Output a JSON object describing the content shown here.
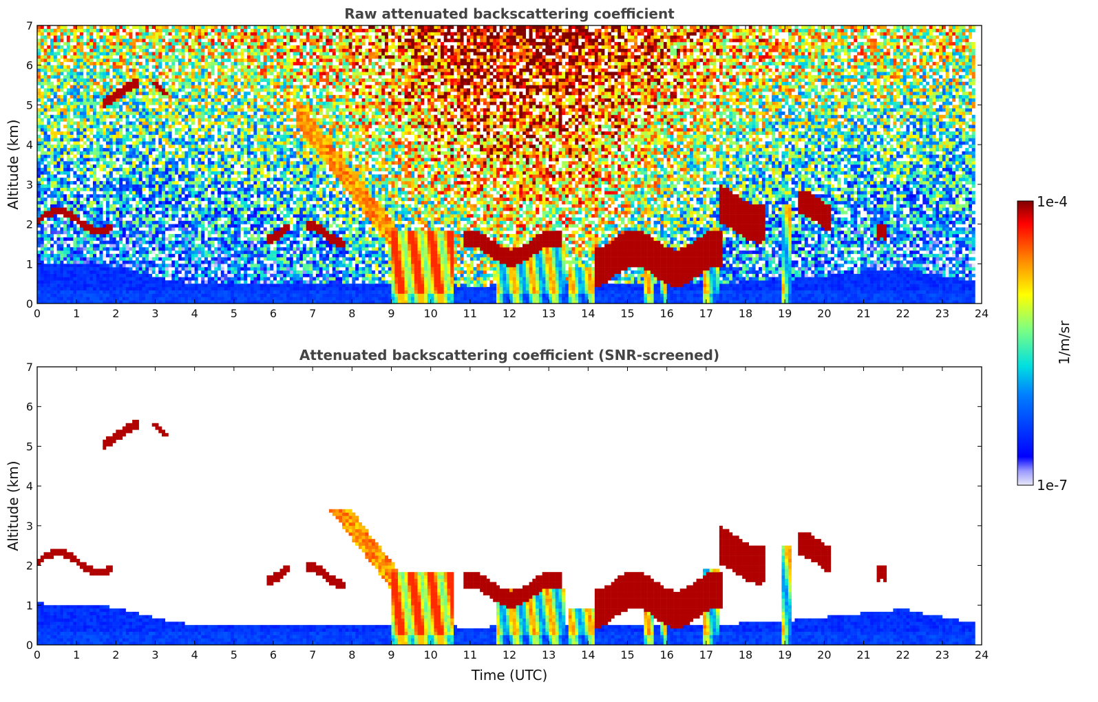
{
  "chart_data": [
    {
      "type": "heatmap",
      "title": "Raw attenuated backscattering coefficient",
      "ylabel": "Altitude (km)",
      "xlabel": "",
      "xlim": [
        0,
        24
      ],
      "ylim": [
        0,
        7
      ],
      "xticks": [
        "0",
        "1",
        "2",
        "3",
        "4",
        "5",
        "6",
        "7",
        "8",
        "9",
        "10",
        "11",
        "12",
        "13",
        "14",
        "15",
        "16",
        "17",
        "18",
        "19",
        "20",
        "21",
        "22",
        "23",
        "24"
      ],
      "yticks": [
        "0",
        "1",
        "2",
        "3",
        "4",
        "5",
        "6",
        "7"
      ],
      "screened": false
    },
    {
      "type": "heatmap",
      "title": "Attenuated backscattering coefficient (SNR-screened)",
      "ylabel": "Altitude (km)",
      "xlabel": "Time (UTC)",
      "xlim": [
        0,
        24
      ],
      "ylim": [
        0,
        7
      ],
      "xticks": [
        "0",
        "1",
        "2",
        "3",
        "4",
        "5",
        "6",
        "7",
        "8",
        "9",
        "10",
        "11",
        "12",
        "13",
        "14",
        "15",
        "16",
        "17",
        "18",
        "19",
        "20",
        "21",
        "22",
        "23",
        "24"
      ],
      "yticks": [
        "0",
        "1",
        "2",
        "3",
        "4",
        "5",
        "6",
        "7"
      ],
      "screened": true
    }
  ],
  "colorbar": {
    "label": "1/m/sr",
    "max_label": "1e-4",
    "min_label": "1e-7",
    "scale": "log",
    "range": [
      1e-07,
      0.0001
    ],
    "colormap": "jet"
  },
  "features": {
    "boundary_layer_top_km": [
      [
        0,
        1.05
      ],
      [
        2,
        0.95
      ],
      [
        3.5,
        0.55
      ],
      [
        5,
        0.5
      ],
      [
        8,
        0.5
      ],
      [
        9,
        0.5
      ],
      [
        11,
        0.45
      ],
      [
        14,
        0.5
      ],
      [
        17,
        0.5
      ],
      [
        19,
        0.6
      ],
      [
        21,
        0.8
      ],
      [
        22,
        0.9
      ],
      [
        23,
        0.7
      ],
      [
        23.8,
        0.55
      ]
    ],
    "cloud_layers": [
      {
        "t0": 0,
        "t1": 1.95,
        "z0": 2.0,
        "z1": 2.15
      },
      {
        "t0": 1.7,
        "t1": 2.6,
        "z0": 5.2,
        "z1": 5.4
      },
      {
        "t0": 2.9,
        "t1": 3.3,
        "z0": 5.35,
        "z1": 5.45
      },
      {
        "t0": 5.8,
        "t1": 6.4,
        "z0": 1.75,
        "z1": 1.95
      },
      {
        "t0": 6.8,
        "t1": 7.8,
        "z0": 1.65,
        "z1": 1.85
      },
      {
        "t0": 10.8,
        "t1": 13.3,
        "z0": 1.2,
        "z1": 1.6
      },
      {
        "t0": 14.2,
        "t1": 17.4,
        "z0": 0.7,
        "z1": 1.6
      },
      {
        "t0": 17.3,
        "t1": 18.5,
        "z0": 1.8,
        "z1": 2.7
      },
      {
        "t0": 19.3,
        "t1": 20.2,
        "z0": 2.0,
        "z1": 2.6
      },
      {
        "t0": 21.3,
        "t1": 21.6,
        "z0": 1.4,
        "z1": 1.7
      }
    ],
    "precipitation_shafts": [
      {
        "t0": 9.0,
        "t1": 10.6,
        "top_km": 1.8
      },
      {
        "t0": 11.7,
        "t1": 13.4,
        "top_km": 1.4
      },
      {
        "t0": 13.5,
        "t1": 14.2,
        "top_km": 0.9
      },
      {
        "t0": 15.4,
        "t1": 15.7,
        "top_km": 1.0
      },
      {
        "t0": 15.8,
        "t1": 16.0,
        "top_km": 1.1
      },
      {
        "t0": 16.9,
        "t1": 17.35,
        "top_km": 1.9
      },
      {
        "t0": 18.9,
        "t1": 19.15,
        "top_km": 2.5
      }
    ],
    "slanted_fall_band": {
      "t_start": 6.6,
      "z_start": 4.8,
      "t_end": 9.2,
      "z_end": 1.5
    }
  }
}
